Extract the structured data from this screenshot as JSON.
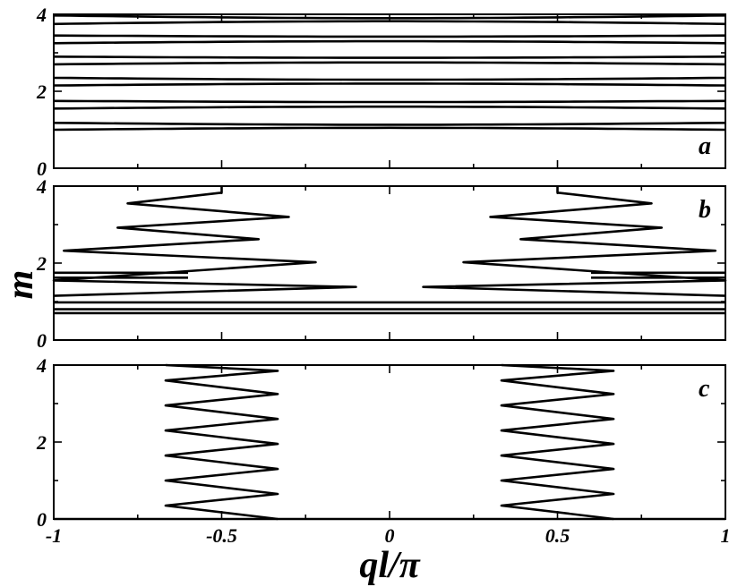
{
  "chart_data": [
    {
      "type": "line",
      "panel_label": "a",
      "x_ticks": [
        "-1",
        "-0.5",
        "0",
        "0.5",
        "1"
      ],
      "y_ticks": [
        "0",
        "2",
        "4"
      ],
      "xlim": [
        -1,
        1
      ],
      "ylim": [
        0,
        4
      ],
      "description_of_curves": "nearly horizontal bands spanning full q range",
      "levels": [
        {
          "y_left": 1.0,
          "y_center": 1.05
        },
        {
          "y_left": 1.18,
          "y_center": 1.13
        },
        {
          "y_left": 1.55,
          "y_center": 1.6
        },
        {
          "y_left": 1.75,
          "y_center": 1.72
        },
        {
          "y_left": 2.15,
          "y_center": 2.2
        },
        {
          "y_left": 2.35,
          "y_center": 2.3
        },
        {
          "y_left": 2.7,
          "y_center": 2.75
        },
        {
          "y_left": 2.9,
          "y_center": 2.87
        },
        {
          "y_left": 3.25,
          "y_center": 3.3
        },
        {
          "y_left": 3.45,
          "y_center": 3.42
        },
        {
          "y_left": 3.75,
          "y_center": 3.82
        },
        {
          "y_left": 3.97,
          "y_center": 3.9
        }
      ]
    },
    {
      "type": "line",
      "panel_label": "b",
      "x_ticks": [
        "-1",
        "-0.5",
        "0",
        "0.5",
        "1"
      ],
      "y_ticks": [
        "0",
        "2",
        "4"
      ],
      "xlim": [
        -1,
        1
      ],
      "ylim": [
        0,
        4
      ],
      "left_branch": {
        "x": [
          -1.0,
          -1.0,
          0.0,
          -1.0,
          -1.0,
          -0.1,
          -1.0,
          -1.0,
          -0.22,
          -0.97,
          -0.81,
          -0.39,
          -0.78,
          -0.58,
          -0.3
        ],
        "y": [
          0.7,
          0.72,
          0.76,
          0.8,
          1.15,
          1.38,
          1.6,
          1.75,
          2.02,
          2.32,
          2.92,
          2.62,
          3.2,
          3.55,
          3.83
        ]
      },
      "right_branch": {
        "x": [
          1.0,
          1.0,
          0.0,
          1.0,
          1.0,
          0.1,
          1.0,
          1.0,
          0.22,
          0.97,
          0.81,
          0.39,
          0.78,
          0.58,
          0.3
        ],
        "y": [
          0.7,
          0.72,
          0.76,
          0.8,
          1.15,
          1.38,
          1.6,
          1.75,
          2.02,
          2.32,
          2.92,
          2.62,
          3.2,
          3.55,
          3.83
        ]
      },
      "top_start": {
        "left_x": -0.5,
        "right_x": 0.5,
        "y": 4.0
      }
    },
    {
      "type": "line",
      "panel_label": "c",
      "x_ticks": [
        "-1",
        "-0.5",
        "0",
        "0.5",
        "1"
      ],
      "x_ticks_values": [
        -1,
        -0.5,
        0,
        0.5,
        1
      ],
      "y_ticks": [
        "0",
        "2",
        "4"
      ],
      "xlim": [
        -1,
        1
      ],
      "ylim": [
        0,
        4
      ],
      "left_zigzag": {
        "x_min": -0.667,
        "x_max": -0.333,
        "y": [
          0.0,
          0.35,
          0.65,
          1.0,
          1.3,
          1.65,
          1.95,
          2.3,
          2.6,
          2.95,
          3.25,
          3.6,
          3.85,
          4.0
        ]
      },
      "right_zigzag": {
        "x_min": 0.333,
        "x_max": 0.667,
        "y": [
          0.0,
          0.35,
          0.65,
          1.0,
          1.3,
          1.65,
          1.95,
          2.3,
          2.6,
          2.95,
          3.25,
          3.6,
          3.85,
          4.0
        ]
      }
    }
  ],
  "axis_titles": {
    "ylabel": "m",
    "xlabel": "ql/π"
  }
}
